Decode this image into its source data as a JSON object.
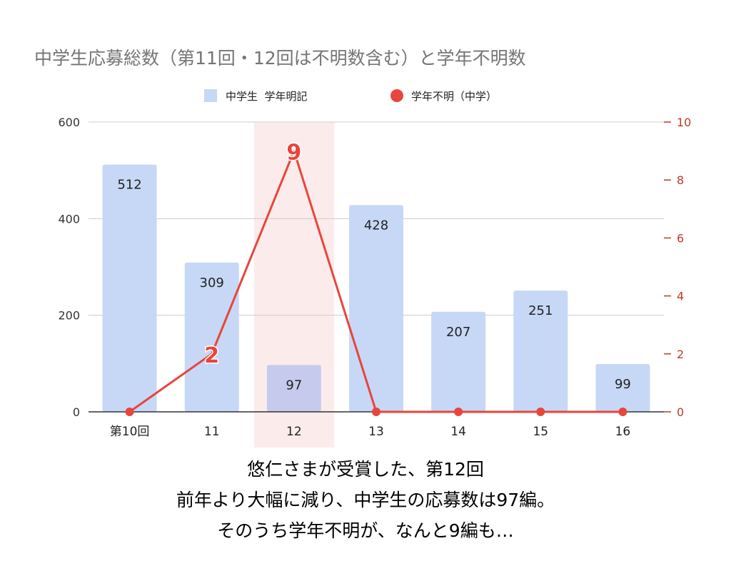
{
  "chart_data": {
    "type": "bar",
    "title": "中学生応募総数（第11回・12回は不明数含む）と学年不明数",
    "categories": [
      "第10回",
      "11",
      "12",
      "13",
      "14",
      "15",
      "16"
    ],
    "series": [
      {
        "name": "中学生  学年明記",
        "type": "bar",
        "axis": "left",
        "values": [
          512,
          309,
          97,
          428,
          207,
          251,
          99
        ]
      },
      {
        "name": "学年不明（中学）",
        "type": "line",
        "axis": "right",
        "values": [
          0,
          2,
          9,
          0,
          0,
          0,
          0
        ]
      }
    ],
    "y_left": {
      "range": [
        0,
        600
      ],
      "ticks": [
        "0",
        "200",
        "400",
        "600"
      ]
    },
    "y_right": {
      "range": [
        0,
        10
      ],
      "ticks": [
        "0",
        "2",
        "4",
        "6",
        "8",
        "10"
      ]
    },
    "highlight_category": "12",
    "line_labels": [
      {
        "category": "11",
        "text": "2"
      },
      {
        "category": "12",
        "text": "9"
      }
    ],
    "legend_position": "top",
    "grid": true,
    "colors": {
      "bar": "#c6d8f5",
      "bar_highlight": "#c6cbed",
      "line": "#e8453c",
      "highlight_band": "#fbeceb",
      "right_axis_text": "#c0392b"
    }
  },
  "caption": {
    "line1": "悠仁さまが受賞した、第12回",
    "line2": "前年より大幅に減り、中学生の応募数は97編。",
    "line3": "そのうち学年不明が、なんと9編も…"
  }
}
